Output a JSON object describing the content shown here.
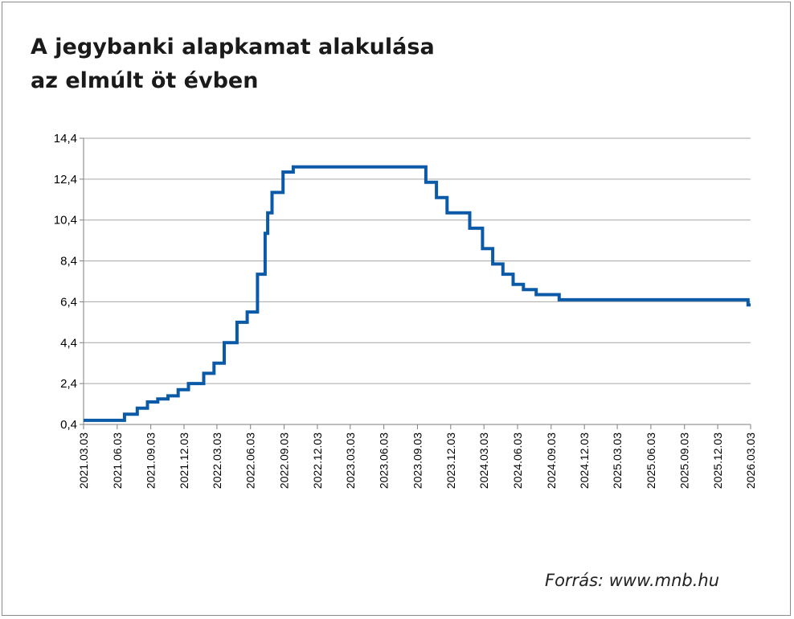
{
  "title_lines": [
    "A jegybanki alapkamat alakulása",
    "az elmúlt öt évben"
  ],
  "source": "Forrás: www.mnb.hu",
  "colors": {
    "line": "#0a5aa8",
    "grid": "#a6a6a6",
    "axis": "#7f7f7f"
  },
  "chart_data": {
    "type": "line",
    "title": "A jegybanki alapkamat alakulása az elmúlt öt évben",
    "xlabel": "",
    "ylabel": "",
    "xlim": [
      "2021.03.03",
      "2026.03.03"
    ],
    "ylim": [
      0.4,
      14.4
    ],
    "yticks": [
      "0,4",
      "2,4",
      "4,4",
      "6,4",
      "8,4",
      "10,4",
      "12,4",
      "14,4"
    ],
    "ytick_values": [
      0.4,
      2.4,
      4.4,
      6.4,
      8.4,
      10.4,
      12.4,
      14.4
    ],
    "xticks": [
      "2021.03.03",
      "2021.06.03",
      "2021.09.03",
      "2021.12.03",
      "2022.03.03",
      "2022.06.03",
      "2022.09.03",
      "2022.12.03",
      "2023.03.03",
      "2023.06.03",
      "2023.09.03",
      "2023.12.03",
      "2024.03.03",
      "2024.06.03",
      "2024.09.03",
      "2024.12.03",
      "2025.03.03",
      "2025.06.03",
      "2025.09.03",
      "2025.12.03",
      "2026.03.03"
    ],
    "grid": true,
    "legend": false,
    "step": true,
    "series": [
      {
        "x": [
          "2021.03.03",
          "2021.06.23",
          "2021.07.28",
          "2021.08.25",
          "2021.09.22",
          "2021.10.20",
          "2021.11.17",
          "2021.12.15",
          "2022.01.26",
          "2022.02.23",
          "2022.03.23",
          "2022.04.27",
          "2022.05.25",
          "2022.06.22",
          "2022.07.13",
          "2022.07.20",
          "2022.08.01",
          "2022.08.31",
          "2022.09.28",
          "2023.09.26",
          "2023.10.25",
          "2023.11.23",
          "2024.01.24",
          "2024.02.28",
          "2024.03.27",
          "2024.04.24",
          "2024.05.22",
          "2024.06.19",
          "2024.07.24",
          "2024.09.25",
          "2026.02.24"
        ],
        "values": [
          0.6,
          0.9,
          1.2,
          1.5,
          1.65,
          1.8,
          2.1,
          2.4,
          2.9,
          3.4,
          4.4,
          5.4,
          5.9,
          7.75,
          9.75,
          10.75,
          11.75,
          12.75,
          13.0,
          12.25,
          11.5,
          10.75,
          10.0,
          9.0,
          8.25,
          7.75,
          7.25,
          7.0,
          6.75,
          6.5,
          6.25
        ]
      }
    ]
  }
}
